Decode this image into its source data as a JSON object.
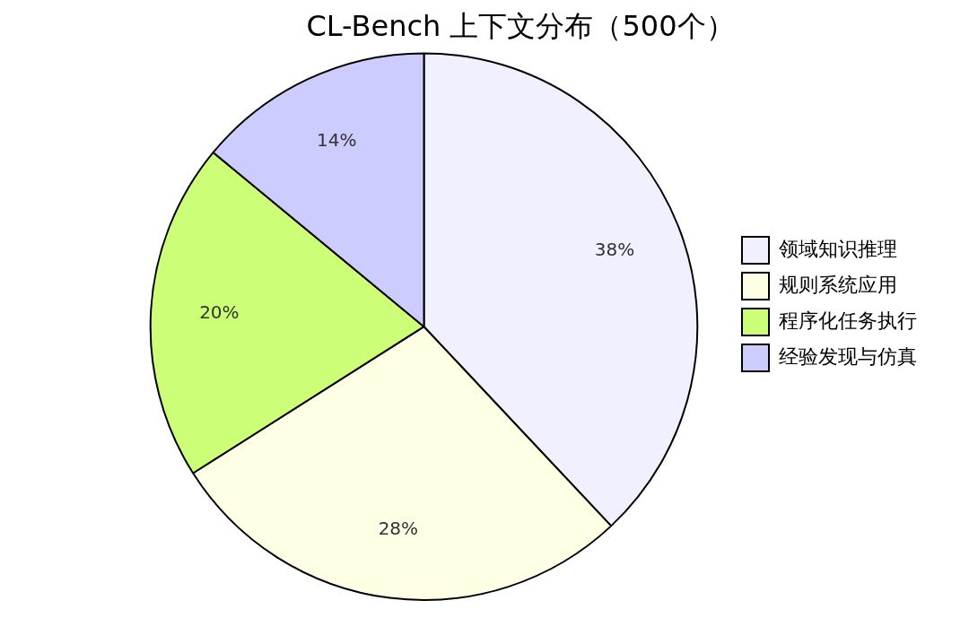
{
  "chart_data": {
    "type": "pie",
    "title": "CL-Bench 上下文分布（500个）",
    "categories": [
      "领域知识推理",
      "规则系统应用",
      "程序化任务执行",
      "经验发现与仿真"
    ],
    "values": [
      38,
      28,
      20,
      14
    ],
    "value_labels": [
      "38%",
      "28%",
      "20%",
      "14%"
    ],
    "colors": [
      "#f0f0ff",
      "#ffffe6",
      "#ccff77",
      "#ccccff"
    ],
    "legend": "right"
  }
}
